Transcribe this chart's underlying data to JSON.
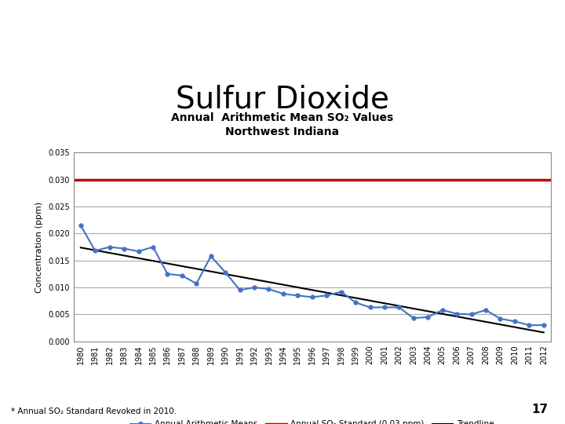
{
  "title": "Sulfur Dioxide",
  "subtitle": "Annual  Arithmetic Mean SO₂ Values\nNorthwest Indiana",
  "ylabel": "Concentration (ppm)",
  "footnote": "* Annual SO₂ Standard Revoked in 2010.",
  "page_number": "17",
  "years": [
    1980,
    1981,
    1982,
    1983,
    1984,
    1985,
    1986,
    1987,
    1988,
    1989,
    1990,
    1991,
    1992,
    1993,
    1994,
    1995,
    1996,
    1997,
    1998,
    1999,
    2000,
    2001,
    2002,
    2003,
    2004,
    2005,
    2006,
    2007,
    2008,
    2009,
    2010,
    2011,
    2012
  ],
  "annual_means": [
    0.0215,
    0.0168,
    0.0175,
    0.0172,
    0.0167,
    0.0175,
    0.0125,
    0.0122,
    0.0107,
    0.0158,
    0.0128,
    0.0095,
    0.01,
    0.0097,
    0.0088,
    0.0085,
    0.0082,
    0.0085,
    0.0092,
    0.0072,
    0.0063,
    0.0063,
    0.0063,
    0.0043,
    0.0045,
    0.0058,
    0.0051,
    0.005,
    0.0058,
    0.0042,
    0.0037,
    0.003,
    0.003
  ],
  "so2_standard": 0.03,
  "ylim": [
    0.0,
    0.035
  ],
  "yticks": [
    0.0,
    0.005,
    0.01,
    0.015,
    0.02,
    0.025,
    0.03,
    0.035
  ],
  "line_color_blue": "#4472C4",
  "line_color_red": "#C0000C",
  "line_color_black": "#000000",
  "background_color": "#FFFFFF",
  "grid_color": "#AAAAAA",
  "title_fontsize": 28,
  "subtitle_fontsize": 10,
  "axis_fontsize": 8,
  "tick_fontsize": 7,
  "header_color": "#4F7F3E",
  "banner_color": "#3A6B9F"
}
